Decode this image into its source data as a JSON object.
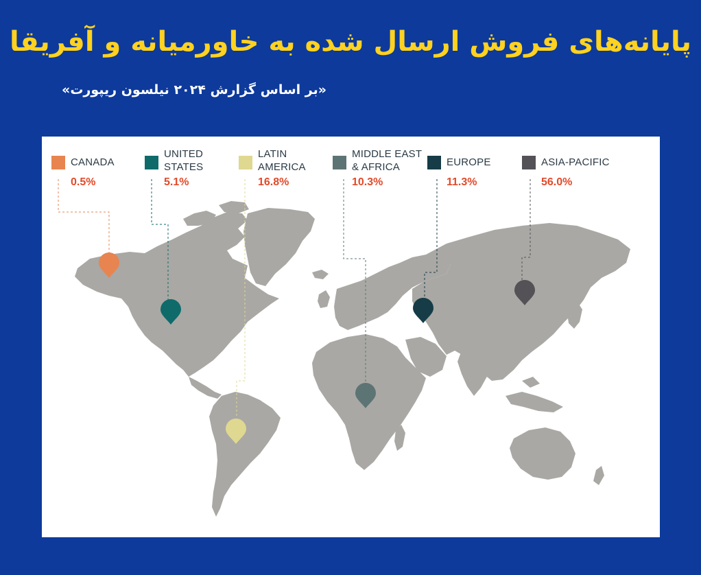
{
  "header": {
    "title": "پایانه‌های فروش ارسال شده به خاورمیانه و آفریقا",
    "subtitle": "«بر اساس گزارش ۲۰۲۴ نیلسون ریپورت»"
  },
  "legend": [
    {
      "name": "CANADA",
      "value": "0.5%",
      "color": "#e8844f"
    },
    {
      "name": "UNITED\nSTATES",
      "value": "5.1%",
      "color": "#0e6b6a"
    },
    {
      "name": "LATIN\nAMERICA",
      "value": "16.8%",
      "color": "#dfd890"
    },
    {
      "name": "MIDDLE EAST\n& AFRICA",
      "value": "10.3%",
      "color": "#5d7474"
    },
    {
      "name": "EUROPE",
      "value": "11.3%",
      "color": "#163c47"
    },
    {
      "name": "ASIA-PACIFIC",
      "value": "56.0%",
      "color": "#545257"
    }
  ],
  "colors": {
    "background": "#0d3a9b",
    "title": "#ffd21f",
    "land": "#a9a8a4",
    "value_text": "#e24a2a"
  },
  "icons": {
    "marker": "map-pin-icon"
  }
}
